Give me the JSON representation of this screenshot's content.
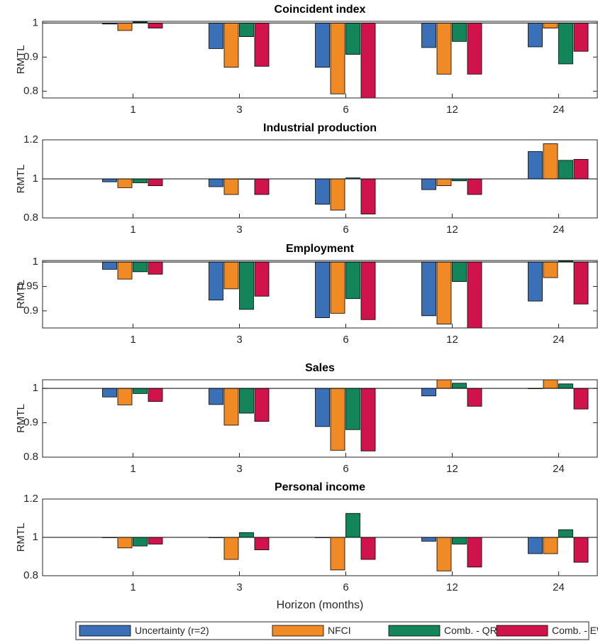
{
  "chart_data": {
    "type": "bar",
    "categories": [
      1,
      3,
      6,
      12,
      24
    ],
    "xlabel": "Horizon (months)",
    "baseline": 1,
    "legend": "bottom",
    "series": [
      {
        "name": "Uncertainty (r=2)",
        "color": "#3a70b8"
      },
      {
        "name": "NFCI",
        "color": "#f08a24"
      },
      {
        "name": "Comb. - QR",
        "color": "#14855a"
      },
      {
        "name": "Comb. - EW",
        "color": "#d0134a"
      }
    ],
    "panels": [
      {
        "title": "Coincident index",
        "ylabel": "RMTL",
        "ylim": [
          0.78,
          1.005
        ],
        "yticks": [
          0.8,
          0.9,
          1
        ],
        "values": [
          [
            0.997,
            0.925,
            0.87,
            0.928,
            0.93
          ],
          [
            0.978,
            0.87,
            0.792,
            0.85,
            0.985
          ],
          [
            1.003,
            0.96,
            0.908,
            0.946,
            0.88
          ],
          [
            0.985,
            0.873,
            0.78,
            0.85,
            0.917
          ]
        ]
      },
      {
        "title": "Industrial production",
        "ylabel": "RMTL",
        "ylim": [
          0.8,
          1.2
        ],
        "yticks": [
          0.8,
          1,
          1.2
        ],
        "values": [
          [
            0.985,
            0.96,
            0.87,
            0.945,
            1.14
          ],
          [
            0.955,
            0.92,
            0.84,
            0.965,
            1.18
          ],
          [
            0.98,
            1.0,
            1.005,
            0.99,
            1.095
          ],
          [
            0.965,
            0.92,
            0.82,
            0.92,
            1.1
          ]
        ]
      },
      {
        "title": "Employment",
        "ylabel": "RMTL",
        "ylim": [
          0.865,
          1.003
        ],
        "yticks": [
          0.9,
          0.95,
          1
        ],
        "values": [
          [
            0.985,
            0.922,
            0.886,
            0.89,
            0.92
          ],
          [
            0.965,
            0.945,
            0.895,
            0.873,
            0.968
          ],
          [
            0.98,
            0.903,
            0.925,
            0.96,
            1.002
          ],
          [
            0.975,
            0.93,
            0.882,
            0.865,
            0.914
          ]
        ]
      },
      {
        "title": "Sales",
        "ylabel": "RMTL",
        "ylim": [
          0.8,
          1.025
        ],
        "yticks": [
          0.8,
          0.9,
          1
        ],
        "values": [
          [
            0.975,
            0.953,
            0.889,
            0.978,
            1.0
          ],
          [
            0.952,
            0.893,
            0.82,
            1.025,
            1.025
          ],
          [
            0.985,
            0.928,
            0.88,
            1.015,
            1.013
          ],
          [
            0.962,
            0.904,
            0.818,
            0.948,
            0.94
          ]
        ]
      },
      {
        "title": "Personal income",
        "ylabel": "RMTL",
        "ylim": [
          0.8,
          1.2
        ],
        "yticks": [
          0.8,
          1,
          1.2
        ],
        "values": [
          [
            1.0,
            1.0,
            1.0,
            0.98,
            0.915
          ],
          [
            0.945,
            0.885,
            0.83,
            0.825,
            0.915
          ],
          [
            0.955,
            1.025,
            1.125,
            0.965,
            1.04
          ],
          [
            0.965,
            0.935,
            0.885,
            0.845,
            0.87
          ]
        ]
      }
    ]
  }
}
